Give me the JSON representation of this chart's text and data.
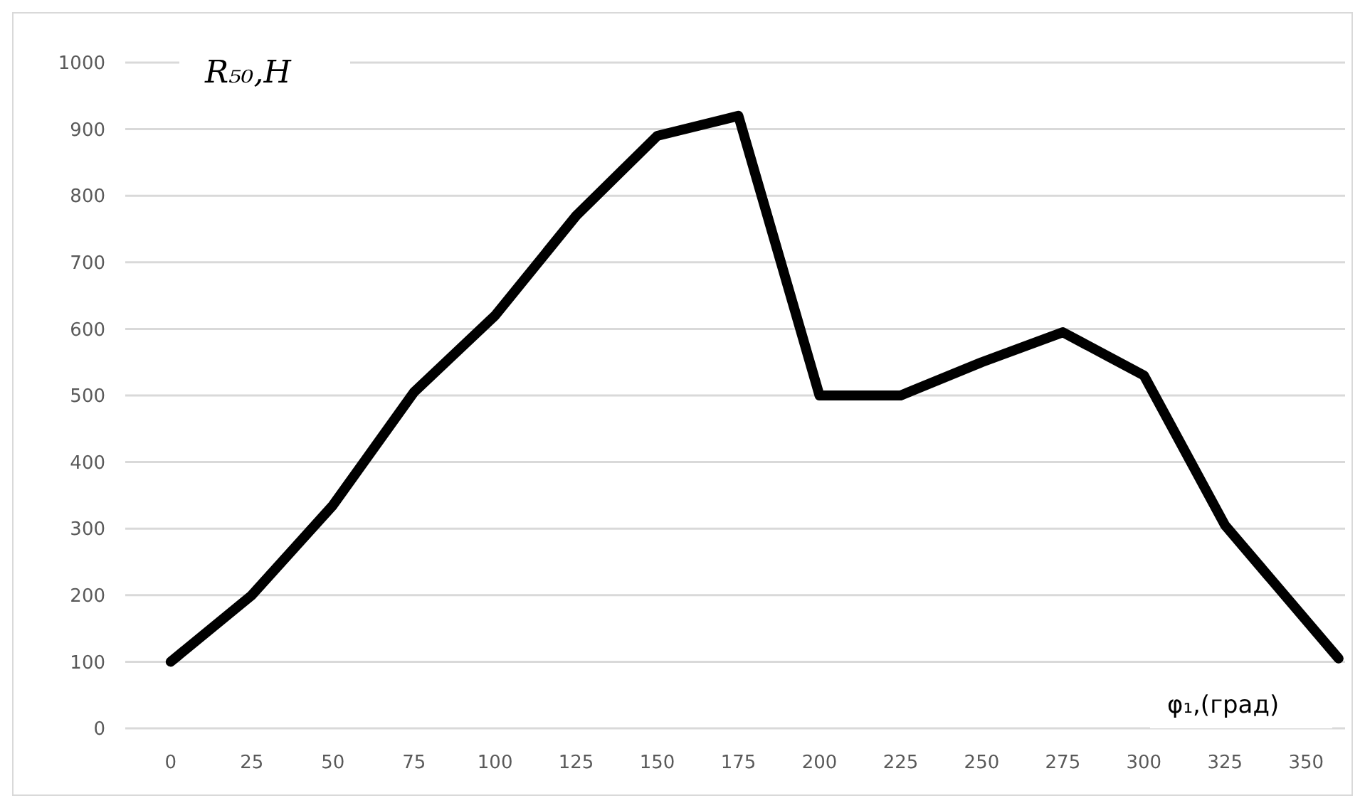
{
  "chart_data": {
    "type": "line",
    "ylabel": "R₅₀,Н",
    "xlabel": "φ₁,(град)",
    "x": [
      0,
      25,
      50,
      75,
      100,
      125,
      150,
      175,
      200,
      225,
      250,
      275,
      300,
      325,
      360
    ],
    "values": [
      100,
      200,
      335,
      505,
      620,
      770,
      890,
      920,
      500,
      500,
      550,
      595,
      530,
      305,
      105
    ],
    "color": "#000000",
    "xlim": [
      -14,
      362
    ],
    "xticks": [
      0,
      25,
      50,
      75,
      100,
      125,
      150,
      175,
      200,
      225,
      250,
      275,
      300,
      325,
      350
    ],
    "ylim": [
      0,
      1000
    ],
    "yticks": [
      0,
      100,
      200,
      300,
      400,
      500,
      600,
      700,
      800,
      900,
      1000
    ],
    "grid": "y",
    "marker": "none",
    "line_style": "solid"
  }
}
